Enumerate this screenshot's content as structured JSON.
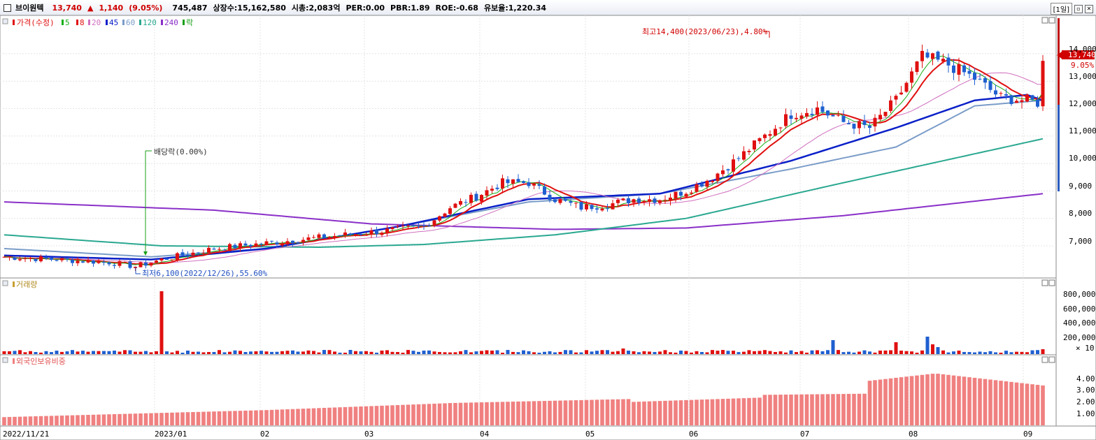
{
  "header": {
    "name": "브이원텍",
    "price": "13,740",
    "change_arrow": "▲",
    "change": "1,140",
    "change_pct": "(9.05%)",
    "volume": "745,487",
    "listed_shares": "상장수:15,162,580",
    "market_cap": "시총:2,083억",
    "per": "PER:0.00",
    "pbr": "PBR:1.89",
    "roe": "ROE:-0.68",
    "reserve": "유보율:1,220.34",
    "period": "[1일]"
  },
  "panels": {
    "price": {
      "legend": [
        "가격(수정)",
        "5",
        "8",
        "20",
        "45",
        "60",
        "120",
        "240",
        "락"
      ]
    },
    "volume": {
      "legend": "거래량",
      "axis_ticks": [
        "800,000",
        "600,000",
        "400,000",
        "200,000"
      ],
      "multiplier": "× 10"
    },
    "foreign": {
      "legend": "외국인보유비중",
      "axis_ticks": [
        "4.00",
        "3.00",
        "2.00",
        "1.00"
      ]
    }
  },
  "annotations": {
    "high": "최고14,400(2023/06/23),4.80%",
    "low": "최저6,100(2022/12/26),55.60%",
    "dividend": "배당락(0.00%)",
    "last_price": "13,740",
    "last_pct": "9.05%"
  },
  "chart_data": {
    "type": "candlestick",
    "price_axis": [
      "14,000",
      "13,000",
      "12,000",
      "11,000",
      "10,000",
      "9,000",
      "8,000",
      "7,000"
    ],
    "x_labels": [
      "2022/11/21",
      "2023/01",
      "02",
      "03",
      "04",
      "05",
      "06",
      "07",
      "08",
      "09"
    ],
    "moving_average_periods": [
      5,
      8,
      20,
      45,
      60,
      120,
      240
    ],
    "colors": {
      "up": "#e01010",
      "down": "#1f5fd0",
      "ma5": "#18b018",
      "ma8": "#e01010",
      "ma20": "#d070c0",
      "ma45": "#0a20c8",
      "ma60": "#7a9cc8",
      "ma120": "#2aa890",
      "ma240": "#8a30c8",
      "foreign": "#f08080"
    },
    "last_price": 13740,
    "high": 14400,
    "low": 6100
  }
}
